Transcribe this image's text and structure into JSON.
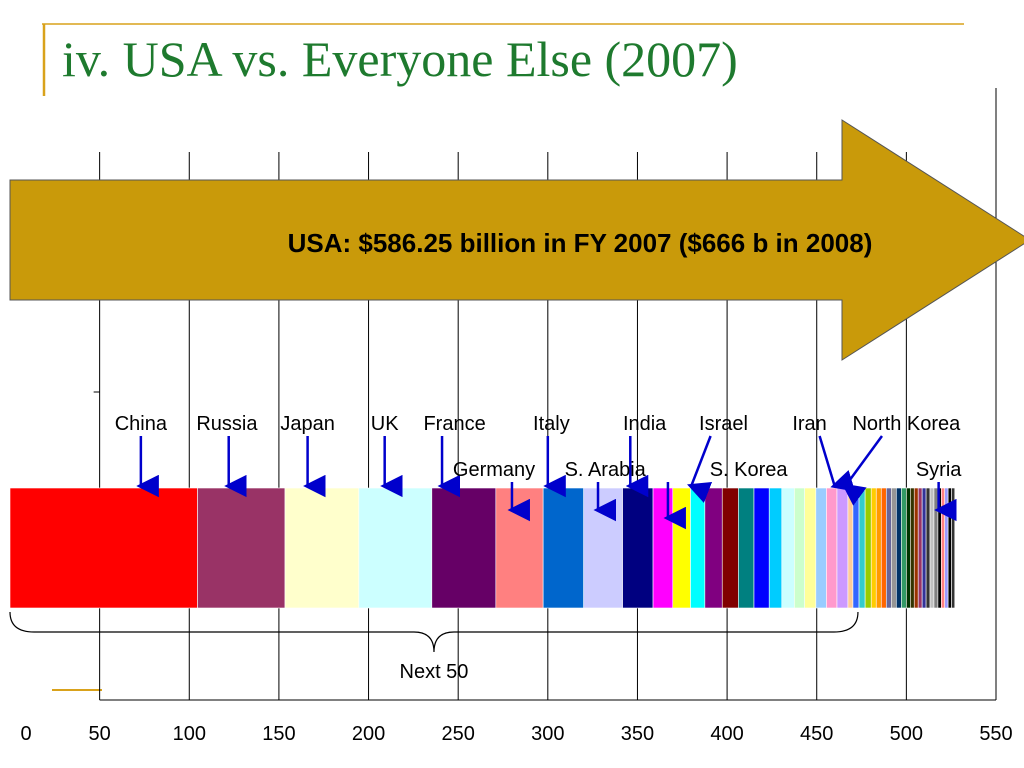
{
  "slide": {
    "title": "iv. USA vs. Everyone Else (2007)",
    "accent_color": "#1e7a2e",
    "decor_color": "#d9a21b"
  },
  "chart_data": {
    "type": "bar",
    "title": "",
    "xlabel": "",
    "ylabel": "",
    "xlim": [
      0,
      550
    ],
    "x_ticks": [
      0,
      50,
      100,
      150,
      200,
      250,
      300,
      350,
      400,
      450,
      500,
      550
    ],
    "x_tick_labels": [
      "0",
      "50",
      "100",
      "150",
      "200",
      "250",
      "300",
      "350",
      "400",
      "450",
      "500",
      "550"
    ],
    "grid": true,
    "usa": {
      "label": "USA: $586.25 billion in FY 2007 ($666 b in 2008)",
      "value": 586.25,
      "arrow_color": "#c99a0a"
    },
    "segments": [
      {
        "start": 0,
        "value": 104.6,
        "color": "#ff0000"
      },
      {
        "start": 104.6,
        "value": 48.8,
        "color": "#993366"
      },
      {
        "start": 153.4,
        "value": 41.2,
        "color": "#ffffcc"
      },
      {
        "start": 194.6,
        "value": 40.7,
        "color": "#ccffff"
      },
      {
        "start": 235.3,
        "value": 35.7,
        "color": "#660066"
      },
      {
        "start": 271.0,
        "value": 26.4,
        "color": "#ff8080"
      },
      {
        "start": 297.4,
        "value": 22.6,
        "color": "#0066cc"
      },
      {
        "start": 320.0,
        "value": 21.7,
        "color": "#ccccff"
      },
      {
        "start": 341.7,
        "value": 17.0,
        "color": "#000080"
      },
      {
        "start": 358.7,
        "value": 11.0,
        "color": "#ff00ff"
      },
      {
        "start": 369.7,
        "value": 9.9,
        "color": "#ffff00"
      },
      {
        "start": 379.6,
        "value": 8.0,
        "color": "#00ffff"
      },
      {
        "start": 387.6,
        "value": 9.7,
        "color": "#800080"
      },
      {
        "start": 397.3,
        "value": 9.0,
        "color": "#800000"
      },
      {
        "start": 406.3,
        "value": 8.7,
        "color": "#008080"
      },
      {
        "start": 415.0,
        "value": 8.5,
        "color": "#0000ff"
      },
      {
        "start": 423.5,
        "value": 7.0,
        "color": "#00ccff"
      },
      {
        "start": 430.5,
        "value": 7.0,
        "color": "#ccffff"
      },
      {
        "start": 437.5,
        "value": 5.8,
        "color": "#ccffcc"
      },
      {
        "start": 443.3,
        "value": 6.2,
        "color": "#ffff99"
      },
      {
        "start": 449.5,
        "value": 5.9,
        "color": "#99ccff"
      },
      {
        "start": 455.4,
        "value": 5.9,
        "color": "#ff99cc"
      },
      {
        "start": 461.3,
        "value": 6.1,
        "color": "#cc99ff"
      },
      {
        "start": 467.4,
        "value": 2.8,
        "color": "#ffcc99"
      },
      {
        "start": 470.2,
        "value": 3.4,
        "color": "#3366ff"
      },
      {
        "start": 473.6,
        "value": 3.4,
        "color": "#33cccc"
      },
      {
        "start": 477.0,
        "value": 3.4,
        "color": "#99cc00"
      },
      {
        "start": 480.4,
        "value": 2.8,
        "color": "#ffcc00"
      },
      {
        "start": 483.2,
        "value": 2.8,
        "color": "#ff9900"
      },
      {
        "start": 486.0,
        "value": 2.8,
        "color": "#ff6600"
      },
      {
        "start": 488.8,
        "value": 2.8,
        "color": "#666699"
      },
      {
        "start": 491.6,
        "value": 2.8,
        "color": "#969696"
      },
      {
        "start": 494.4,
        "value": 2.8,
        "color": "#003366"
      },
      {
        "start": 497.2,
        "value": 2.8,
        "color": "#339966"
      },
      {
        "start": 500.0,
        "value": 2.2,
        "color": "#003300"
      },
      {
        "start": 502.2,
        "value": 2.2,
        "color": "#333300"
      },
      {
        "start": 504.4,
        "value": 2.2,
        "color": "#993300"
      },
      {
        "start": 506.6,
        "value": 2.2,
        "color": "#993366"
      },
      {
        "start": 508.8,
        "value": 2.2,
        "color": "#333399"
      },
      {
        "start": 511.0,
        "value": 2.2,
        "color": "#333333"
      },
      {
        "start": 513.2,
        "value": 2.2,
        "color": "#c0c0c0"
      },
      {
        "start": 515.4,
        "value": 2.2,
        "color": "#808080"
      },
      {
        "start": 517.6,
        "value": 1.9,
        "color": "#000000"
      },
      {
        "start": 519.5,
        "value": 1.9,
        "color": "#ff8080"
      },
      {
        "start": 521.4,
        "value": 1.9,
        "color": "#9999ff"
      },
      {
        "start": 523.3,
        "value": 1.9,
        "color": "#000000"
      },
      {
        "start": 525.2,
        "value": 1.8,
        "color": "#333333"
      }
    ],
    "annotations": [
      {
        "text": "China",
        "row": 1,
        "label_x": 73,
        "arrow_x": 73,
        "arrow_color": "#0000cc"
      },
      {
        "text": "Russia",
        "row": 1,
        "label_x": 121,
        "arrow_x": 122,
        "arrow_color": "#0000cc"
      },
      {
        "text": "Japan",
        "row": 1,
        "label_x": 166,
        "arrow_x": 166,
        "arrow_color": "#0000cc"
      },
      {
        "text": "UK",
        "row": 1,
        "label_x": 209,
        "arrow_x": 209,
        "arrow_color": "#0000cc"
      },
      {
        "text": "France",
        "row": 1,
        "label_x": 248,
        "arrow_x": 241,
        "arrow_color": "#0000cc"
      },
      {
        "text": "Italy",
        "row": 1,
        "label_x": 302,
        "arrow_x": 300,
        "arrow_color": "#0000cc"
      },
      {
        "text": "India",
        "row": 1,
        "label_x": 354,
        "arrow_x": 346,
        "arrow_color": "#0000cc"
      },
      {
        "text": "Israel",
        "row": 1,
        "label_x": 398,
        "arrow_x": 380,
        "arrow_color": "#0000cc"
      },
      {
        "text": "Iran",
        "row": 1,
        "label_x": 446,
        "arrow_x": 460,
        "arrow_color": "#0000cc"
      },
      {
        "text": "North Korea",
        "row": 1,
        "label_x": 500,
        "arrow_x": 466,
        "arrow_color": "#0000cc"
      },
      {
        "text": "Germany",
        "row": 2,
        "label_x": 270,
        "arrow_x": 280,
        "arrow_color": "#0000cc"
      },
      {
        "text": "S. Arabia",
        "row": 2,
        "label_x": 332,
        "arrow_x": 328,
        "arrow_color": "#0000cc"
      },
      {
        "text": "S. Korea",
        "row": 2,
        "label_x": 412,
        "arrow_x": 367,
        "arrow_color": "#0000cc"
      },
      {
        "text": "Syria",
        "row": 2,
        "label_x": 518,
        "arrow_x": 518,
        "arrow_color": "#0000cc"
      }
    ],
    "brace": {
      "label": "Next 50",
      "start": 0,
      "end": 473
    }
  }
}
